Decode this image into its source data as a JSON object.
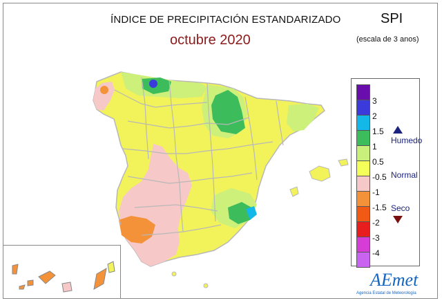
{
  "title": "ÍNDICE DE PRECIPITACIÓN ESTANDARIZADO",
  "subtitle": "octubre 2020",
  "index_name": "SPI",
  "scale_note": "(escala de 3 anos)",
  "legend": {
    "ticks": [
      "3",
      "2",
      "1.5",
      "1",
      "0.5",
      "-0.5",
      "-1",
      "-1.5",
      "-2",
      "-3",
      "-4"
    ],
    "colors": [
      "#6a0dad",
      "#3b3bdb",
      "#14b8e8",
      "#3cbc5a",
      "#c8f07a",
      "#f5ff5a",
      "#f7c8c8",
      "#f4923a",
      "#f05a14",
      "#e81e1e",
      "#d63cd6",
      "#c864f0"
    ],
    "categories": {
      "wet": "Humedo",
      "normal": "Normal",
      "dry": "Seco"
    }
  },
  "logo": {
    "name": "AEmet",
    "tagline": "Agencia Estatal de Meteorología"
  },
  "map_colors": {
    "normal": "#f2f25a",
    "slightly_wet": "#cdf07a",
    "wet": "#3cbc5a",
    "very_wet": "#14b8e8",
    "extremely_wet": "#3b3bdb",
    "dry": "#f7c8c8",
    "moderately_dry": "#f4923a",
    "boundary": "#b8b8b8"
  }
}
